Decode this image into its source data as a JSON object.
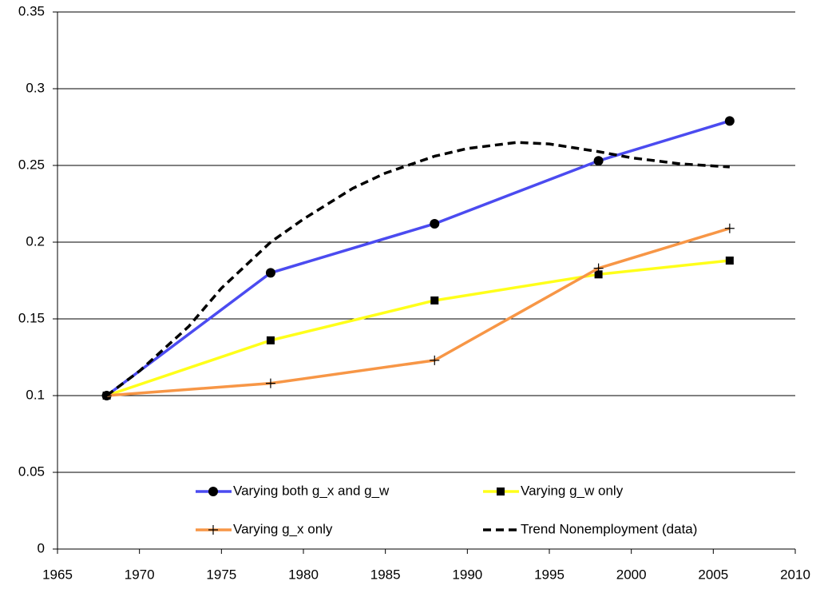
{
  "chart_data": {
    "type": "line",
    "xlim": [
      1965,
      2010
    ],
    "xticks": [
      1965,
      1970,
      1975,
      1980,
      1985,
      1990,
      1995,
      2000,
      2005,
      2010
    ],
    "ylim": [
      0,
      0.35
    ],
    "yticks": [
      0,
      0.05,
      0.1,
      0.15,
      0.2,
      0.25,
      0.3,
      0.35
    ],
    "grid": true,
    "legend": "bottom",
    "series": [
      {
        "name": "Varying both g_x and g_w",
        "color": "#4b4bf0",
        "marker": "circle",
        "x": [
          1968,
          1978,
          1988,
          1998,
          2006
        ],
        "values": [
          0.1,
          0.18,
          0.212,
          0.253,
          0.279
        ]
      },
      {
        "name": "Varying g_w only",
        "color": "#ffff1a",
        "marker": "square",
        "x": [
          1968,
          1978,
          1988,
          1998,
          2006
        ],
        "values": [
          0.1,
          0.136,
          0.162,
          0.179,
          0.188
        ]
      },
      {
        "name": "Varying g_x only",
        "color": "#f79646",
        "marker": "plus",
        "x": [
          1968,
          1978,
          1988,
          1998,
          2006
        ],
        "values": [
          0.1,
          0.108,
          0.123,
          0.183,
          0.209
        ]
      },
      {
        "name": "Trend Nonemployment (data)",
        "color": "#000000",
        "dash": true,
        "x": [
          1968,
          1970,
          1973,
          1975,
          1978,
          1980,
          1983,
          1985,
          1988,
          1990,
          1993,
          1995,
          1998,
          2000,
          2003,
          2006
        ],
        "values": [
          0.1,
          0.116,
          0.145,
          0.17,
          0.2,
          0.215,
          0.235,
          0.245,
          0.256,
          0.261,
          0.265,
          0.264,
          0.259,
          0.255,
          0.251,
          0.249
        ]
      }
    ]
  }
}
